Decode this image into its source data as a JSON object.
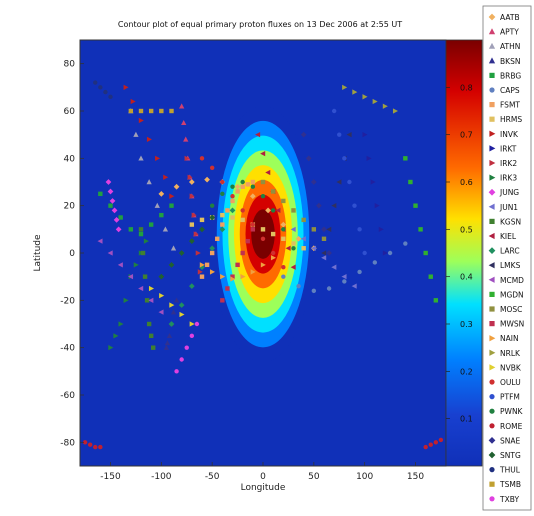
{
  "chart_data": {
    "type": "scatter",
    "title": "Contour plot of equal primary proton fluxes on 13 Dec 2006 at 2:55 UT",
    "xlabel": "Longitude",
    "ylabel": "Latitude",
    "xlim": [
      -180,
      180
    ],
    "ylim": [
      -90,
      90
    ],
    "x_ticks": [
      "-150",
      "-100",
      "-50",
      "0",
      "50",
      "100",
      "150"
    ],
    "y_ticks": [
      "80",
      "60",
      "40",
      "20",
      "0",
      "-20",
      "-40",
      "-60",
      "-80"
    ],
    "background": "#1030b8",
    "colorbar": {
      "ticks": [
        "0.8",
        "0.7",
        "0.6",
        "0.5",
        "0.4",
        "0.3",
        "0.2",
        "0.1"
      ],
      "colors": [
        "#7a0000",
        "#d40000",
        "#ff6a00",
        "#ffe000",
        "#9dff5a",
        "#00e0ff",
        "#0080ff",
        "#1030b8"
      ]
    },
    "contour": {
      "center": [
        0,
        8
      ],
      "levels": [
        0.15,
        0.25,
        0.35,
        0.45,
        0.55,
        0.65,
        0.75,
        0.85
      ]
    },
    "legend_position": "right",
    "legend": [
      {
        "name": "AATB",
        "color": "#f0b060",
        "marker": "diamond"
      },
      {
        "name": "APTY",
        "color": "#d04070",
        "marker": "triangle-up"
      },
      {
        "name": "ATHN",
        "color": "#a0a0b8",
        "marker": "triangle-up"
      },
      {
        "name": "BKSN",
        "color": "#303090",
        "marker": "triangle-up"
      },
      {
        "name": "BRBG",
        "color": "#20a040",
        "marker": "square"
      },
      {
        "name": "CAPS",
        "color": "#6080c0",
        "marker": "circle"
      },
      {
        "name": "FSMT",
        "color": "#f0a060",
        "marker": "square"
      },
      {
        "name": "HRMS",
        "color": "#e0c060",
        "marker": "square"
      },
      {
        "name": "INVK",
        "color": "#c02020",
        "marker": "triangle-right"
      },
      {
        "name": "IRKT",
        "color": "#2020a0",
        "marker": "triangle-right"
      },
      {
        "name": "IRK2",
        "color": "#c03040",
        "marker": "triangle-right"
      },
      {
        "name": "IRK3",
        "color": "#208040",
        "marker": "triangle-right"
      },
      {
        "name": "JUNG",
        "color": "#e040e0",
        "marker": "diamond"
      },
      {
        "name": "JUN1",
        "color": "#7070d0",
        "marker": "triangle-left"
      },
      {
        "name": "KGSN",
        "color": "#408030",
        "marker": "square"
      },
      {
        "name": "KIEL",
        "color": "#b02040",
        "marker": "triangle-left"
      },
      {
        "name": "LARC",
        "color": "#209060",
        "marker": "diamond"
      },
      {
        "name": "LMKS",
        "color": "#303060",
        "marker": "triangle-left"
      },
      {
        "name": "MCMD",
        "color": "#a050c0",
        "marker": "triangle-left"
      },
      {
        "name": "MGDN",
        "color": "#30b030",
        "marker": "square"
      },
      {
        "name": "MOSC",
        "color": "#909040",
        "marker": "square"
      },
      {
        "name": "MWSN",
        "color": "#c03050",
        "marker": "square"
      },
      {
        "name": "NAIN",
        "color": "#f0a040",
        "marker": "triangle-right"
      },
      {
        "name": "NRLK",
        "color": "#a0a040",
        "marker": "triangle-right"
      },
      {
        "name": "NVBK",
        "color": "#e0d030",
        "marker": "triangle-right"
      },
      {
        "name": "OULU",
        "color": "#d03030",
        "marker": "circle"
      },
      {
        "name": "PTFM",
        "color": "#3050d0",
        "marker": "circle"
      },
      {
        "name": "PWNK",
        "color": "#208040",
        "marker": "circle"
      },
      {
        "name": "ROME",
        "color": "#c02030",
        "marker": "circle"
      },
      {
        "name": "SNAE",
        "color": "#303090",
        "marker": "diamond"
      },
      {
        "name": "SNTG",
        "color": "#206030",
        "marker": "diamond"
      },
      {
        "name": "THUL",
        "color": "#203080",
        "marker": "circle"
      },
      {
        "name": "TSMB",
        "color": "#c0a030",
        "marker": "square"
      },
      {
        "name": "TXBY",
        "color": "#e040e0",
        "marker": "circle"
      }
    ],
    "series": [
      {
        "name": "AATB",
        "x": [
          -100,
          -85,
          -70,
          -55,
          -40,
          -25,
          -10,
          5,
          20,
          35,
          50
        ],
        "y": [
          25,
          28,
          30,
          31,
          30,
          28,
          24,
          18,
          12,
          6,
          2
        ]
      },
      {
        "name": "APTY",
        "x": [
          -80,
          -78,
          -76,
          -74,
          -72,
          -70,
          -68,
          -66
        ],
        "y": [
          62,
          55,
          48,
          40,
          32,
          24,
          16,
          8
        ]
      },
      {
        "name": "ATHN",
        "x": [
          -130,
          -125,
          -120,
          -112,
          -104,
          -96,
          -88
        ],
        "y": [
          60,
          50,
          40,
          30,
          20,
          10,
          2
        ]
      },
      {
        "name": "BKSN",
        "x": [
          -85,
          -88,
          -90,
          -92,
          -94,
          -95
        ],
        "y": [
          -20,
          -25,
          -30,
          -35,
          -38,
          -40
        ]
      },
      {
        "name": "BRBG",
        "x": [
          -160,
          -150,
          -140,
          -130,
          -120,
          -110,
          -100,
          -90
        ],
        "y": [
          25,
          20,
          15,
          10,
          8,
          12,
          16,
          20
        ]
      },
      {
        "name": "CAPS",
        "x": [
          20,
          35,
          50,
          65,
          80,
          95,
          110,
          125,
          140
        ],
        "y": [
          -10,
          -14,
          -16,
          -15,
          -12,
          -8,
          -4,
          0,
          4
        ]
      },
      {
        "name": "FSMT",
        "x": [
          -60,
          -55,
          -50,
          -45,
          -40,
          -35,
          -30,
          -25,
          -20,
          -15,
          -10
        ],
        "y": [
          -10,
          -5,
          0,
          6,
          12,
          18,
          22,
          26,
          28,
          29,
          30
        ]
      },
      {
        "name": "HRMS",
        "x": [
          -70,
          -60,
          -50,
          -40,
          -30,
          -20,
          -10,
          0,
          10,
          20,
          30,
          40
        ],
        "y": [
          12,
          14,
          15,
          16,
          15,
          14,
          12,
          10,
          8,
          6,
          4,
          2
        ]
      },
      {
        "name": "INVK",
        "x": [
          -135,
          -128,
          -120,
          -112,
          -104,
          -96,
          -90
        ],
        "y": [
          70,
          64,
          56,
          48,
          40,
          32,
          24
        ]
      },
      {
        "name": "IRKT",
        "x": [
          100,
          104,
          108,
          112,
          116,
          120
        ],
        "y": [
          50,
          40,
          30,
          20,
          10,
          0
        ]
      },
      {
        "name": "IRK2",
        "x": [
          -75,
          -72,
          -70,
          -68,
          -66,
          -64,
          -62
        ],
        "y": [
          40,
          32,
          24,
          16,
          8,
          0,
          -8
        ]
      },
      {
        "name": "IRK3",
        "x": [
          -150,
          -145,
          -140,
          -135,
          -130,
          -125,
          -120,
          -115
        ],
        "y": [
          -40,
          -35,
          -30,
          -20,
          -10,
          -5,
          0,
          5
        ]
      },
      {
        "name": "JUNG",
        "x": [
          -152,
          -150,
          -148,
          -146,
          -144,
          -142
        ],
        "y": [
          30,
          26,
          22,
          18,
          14,
          10
        ]
      },
      {
        "name": "JUN1",
        "x": [
          30,
          40,
          50,
          60,
          70,
          80,
          90
        ],
        "y": [
          10,
          6,
          2,
          -2,
          -6,
          -10,
          -14
        ]
      },
      {
        "name": "KGSN",
        "x": [
          -120,
          -118,
          -116,
          -114,
          -112,
          -110,
          -108
        ],
        "y": [
          10,
          0,
          -10,
          -20,
          -30,
          -35,
          -40
        ]
      },
      {
        "name": "KIEL",
        "x": [
          -5,
          0,
          5,
          10,
          15,
          20,
          25,
          30
        ],
        "y": [
          50,
          42,
          34,
          26,
          18,
          10,
          2,
          -6
        ]
      },
      {
        "name": "LARC",
        "x": [
          -90,
          -80,
          -70,
          -60,
          -50,
          -40,
          -30
        ],
        "y": [
          -30,
          -22,
          -14,
          -6,
          2,
          10,
          18
        ]
      },
      {
        "name": "LMKS",
        "x": [
          60,
          65,
          70,
          75,
          80,
          85
        ],
        "y": [
          0,
          10,
          20,
          30,
          40,
          50
        ]
      },
      {
        "name": "MCMD",
        "x": [
          -160,
          -150,
          -140,
          -130,
          -120,
          -110,
          -100
        ],
        "y": [
          5,
          0,
          -5,
          -10,
          -15,
          -20,
          -25
        ]
      },
      {
        "name": "MGDN",
        "x": [
          140,
          145,
          150,
          155,
          160,
          165,
          170
        ],
        "y": [
          40,
          30,
          20,
          10,
          0,
          -10,
          -20
        ]
      },
      {
        "name": "MOSC",
        "x": [
          0,
          10,
          20,
          30,
          40,
          50,
          60
        ],
        "y": [
          30,
          26,
          22,
          18,
          14,
          10,
          6
        ]
      },
      {
        "name": "MWSN",
        "x": [
          -40,
          -35,
          -30,
          -25,
          -20,
          -15,
          -10
        ],
        "y": [
          -20,
          -15,
          -10,
          -5,
          0,
          5,
          10
        ]
      },
      {
        "name": "NAIN",
        "x": [
          -60,
          -50,
          -40,
          -30,
          -20,
          -10,
          0,
          10
        ],
        "y": [
          -5,
          -8,
          -10,
          -11,
          -10,
          -8,
          -5,
          -2
        ]
      },
      {
        "name": "NRLK",
        "x": [
          80,
          90,
          100,
          110,
          120,
          130
        ],
        "y": [
          70,
          68,
          66,
          64,
          62,
          60
        ]
      },
      {
        "name": "NVBK",
        "x": [
          -110,
          -100,
          -90,
          -80,
          -70
        ],
        "y": [
          -15,
          -18,
          -22,
          -26,
          -30
        ]
      },
      {
        "name": "OULU",
        "x": [
          -60,
          -50,
          -40,
          -30,
          -20,
          -10,
          0,
          10,
          20
        ],
        "y": [
          40,
          36,
          30,
          24,
          18,
          12,
          6,
          0,
          -6
        ]
      },
      {
        "name": "PTFM",
        "x": [
          70,
          75,
          80,
          85,
          90,
          95,
          100
        ],
        "y": [
          60,
          50,
          40,
          30,
          20,
          10,
          0
        ]
      },
      {
        "name": "PWNK",
        "x": [
          -50,
          -40,
          -30,
          -20,
          -10,
          0,
          10,
          20,
          30
        ],
        "y": [
          20,
          25,
          28,
          30,
          28,
          24,
          18,
          10,
          2
        ]
      },
      {
        "name": "ROME",
        "x": [
          -175,
          -170,
          -165,
          -160,
          160,
          165,
          170,
          175
        ],
        "y": [
          -80,
          -81,
          -82,
          -82,
          -82,
          -81,
          -80,
          -79
        ]
      },
      {
        "name": "SNAE",
        "x": [
          40,
          45,
          50,
          55,
          60,
          65
        ],
        "y": [
          50,
          40,
          30,
          20,
          10,
          0
        ]
      },
      {
        "name": "SNTG",
        "x": [
          -100,
          -90,
          -80,
          -70,
          -60,
          -50
        ],
        "y": [
          -10,
          -5,
          0,
          5,
          10,
          15
        ]
      },
      {
        "name": "THUL",
        "x": [
          -165,
          -160,
          -155,
          -150
        ],
        "y": [
          72,
          70,
          68,
          66
        ]
      },
      {
        "name": "TSMB",
        "x": [
          -130,
          -120,
          -110,
          -100,
          -90
        ],
        "y": [
          60,
          60,
          60,
          60,
          60
        ]
      },
      {
        "name": "TXBY",
        "x": [
          -85,
          -80,
          -75,
          -70,
          -65
        ],
        "y": [
          -50,
          -45,
          -40,
          -35,
          -30
        ]
      }
    ]
  }
}
